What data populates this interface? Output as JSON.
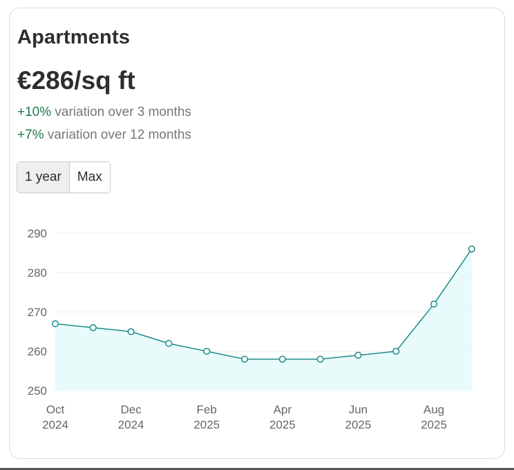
{
  "card": {
    "title": "Apartments",
    "price": "€286/sq ft",
    "variation_3m": {
      "change": "+10%",
      "text": " variation over 3 months"
    },
    "variation_12m": {
      "change": "+7%",
      "text": " variation over 12 months"
    },
    "range_options": [
      {
        "label": "1 year",
        "active": true
      },
      {
        "label": "Max",
        "active": false
      }
    ]
  },
  "colors": {
    "line": "#1a8a8a",
    "area": "#e9fafa",
    "positive": "#1f7a4d"
  },
  "chart_data": {
    "type": "area",
    "x": [
      "2024-10",
      "2024-11",
      "2024-12",
      "2025-01",
      "2025-02",
      "2025-03",
      "2025-04",
      "2025-05",
      "2025-06",
      "2025-07",
      "2025-08",
      "2025-09"
    ],
    "values": [
      267,
      266,
      265,
      262,
      260,
      258,
      258,
      258,
      259,
      260,
      272,
      286
    ],
    "ylim": [
      250,
      290
    ],
    "yticks": [
      "250",
      "260",
      "270",
      "280",
      "290"
    ],
    "xticks": [
      {
        "month": "Oct",
        "year": "2024"
      },
      {
        "month": "Dec",
        "year": "2024"
      },
      {
        "month": "Feb",
        "year": "2025"
      },
      {
        "month": "Apr",
        "year": "2025"
      },
      {
        "month": "Jun",
        "year": "2025"
      },
      {
        "month": "Aug",
        "year": "2025"
      }
    ],
    "grid": true,
    "markers": "hollow-circle"
  }
}
